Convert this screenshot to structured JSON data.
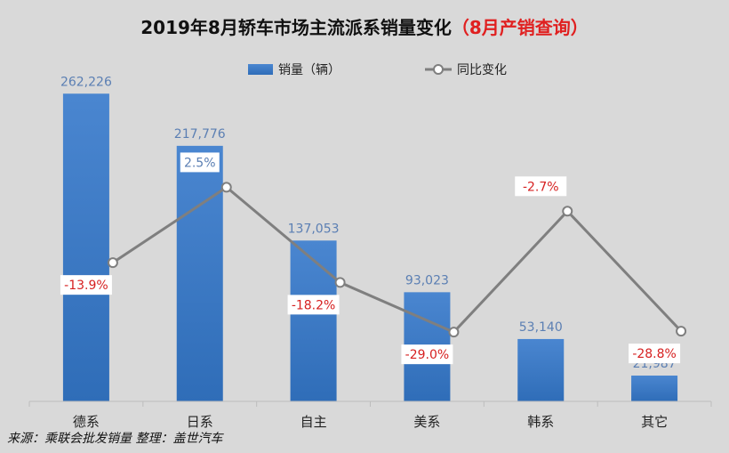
{
  "title_main": "2019年8月轿车市场主流派系销量变化",
  "title_accent": "（8月产销查询）",
  "footer": "来源：乘联会批发销量  整理：盖世汽车",
  "colors": {
    "bar_top": "#4a86d0",
    "bar_bottom": "#2f6db8",
    "line": "#7f7f7f",
    "accent_title": "#e02020",
    "negative": "#d62020",
    "positive": "#5b7fb3"
  },
  "chart_data": {
    "type": "bar",
    "categories": [
      "德系",
      "日系",
      "自主",
      "美系",
      "韩系",
      "其它"
    ],
    "series": [
      {
        "name": "销量（辆）",
        "type": "bar",
        "values": [
          262226,
          217776,
          137053,
          93023,
          53140,
          21987
        ],
        "labels": [
          "262,226",
          "217,776",
          "137,053",
          "93,023",
          "53,140",
          "21,987"
        ]
      },
      {
        "name": "同比变化",
        "type": "line",
        "values": [
          -13.9,
          2.5,
          -18.2,
          -29.0,
          -2.7,
          -28.8
        ],
        "labels": [
          "-13.9%",
          "2.5%",
          "-18.2%",
          "-29.0%",
          "-2.7%",
          "-28.8%"
        ]
      }
    ],
    "ylim": [
      0,
      270000
    ],
    "y2lim": [
      -40,
      20
    ],
    "legend": "top-center",
    "grid": false
  }
}
